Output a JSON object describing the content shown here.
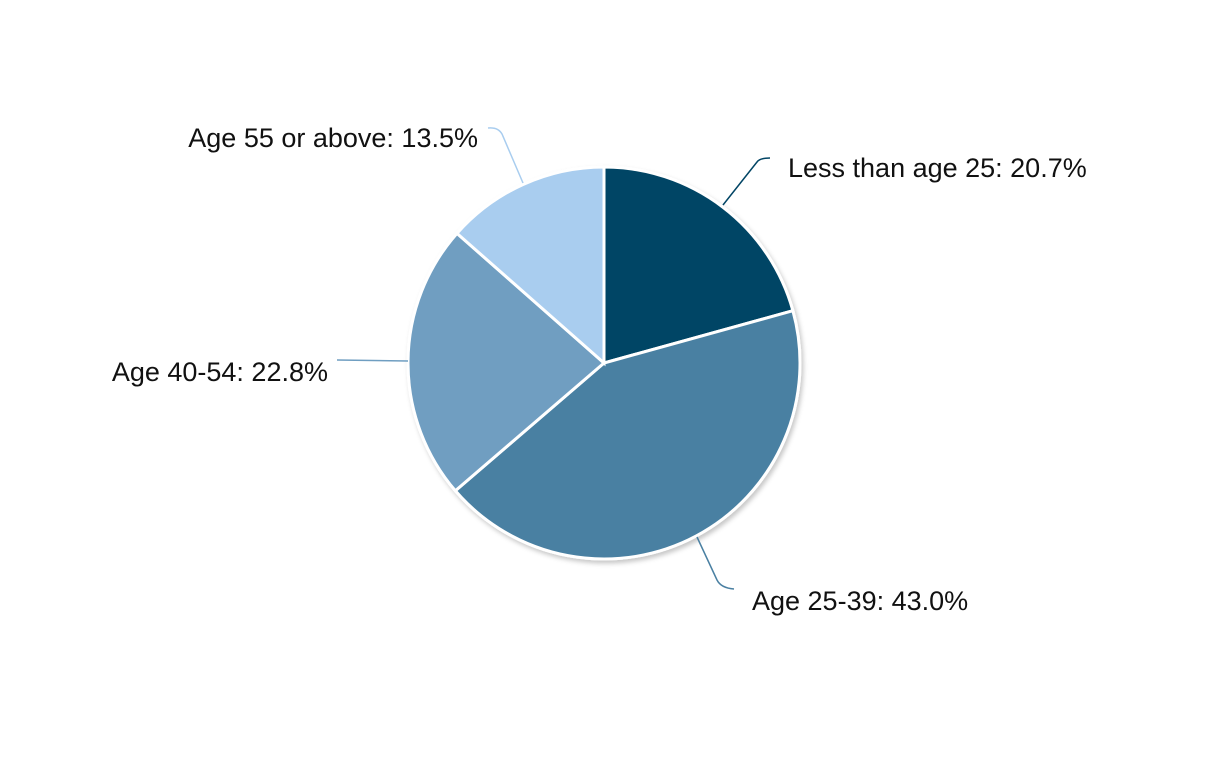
{
  "chart_data": {
    "type": "pie",
    "start_angle_deg": 0,
    "direction": "clockwise",
    "slices": [
      {
        "label": "Less than age 25",
        "value": 20.7,
        "display": "Less than age 25: 20.7%",
        "color": "#024565"
      },
      {
        "label": "Age 25-39",
        "value": 43.0,
        "display": "Age 25-39: 43.0%",
        "color": "#4a80a2"
      },
      {
        "label": "Age 40-54",
        "value": 22.8,
        "display": "Age 40-54: 22.8%",
        "color": "#6f9ec1"
      },
      {
        "label": "Age 55 or above",
        "value": 13.5,
        "display": "Age 55 or above: 13.5%",
        "color": "#a9cdef"
      }
    ]
  }
}
